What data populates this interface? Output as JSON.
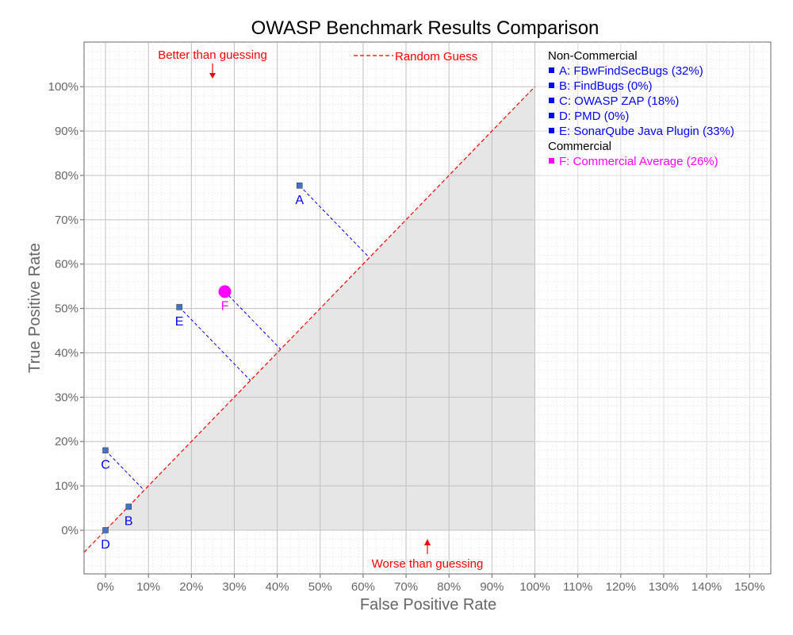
{
  "chart_data": {
    "type": "scatter",
    "title": "OWASP Benchmark Results Comparison",
    "xlabel": "False Positive Rate",
    "ylabel": "True Positive Rate",
    "xlim": [
      -5,
      160
    ],
    "ylim": [
      -10,
      110
    ],
    "x_ticks": [
      "0%",
      "10%",
      "20%",
      "30%",
      "40%",
      "50%",
      "60%",
      "70%",
      "80%",
      "90%",
      "100%",
      "110%",
      "120%",
      "130%",
      "140%",
      "150%"
    ],
    "y_ticks": [
      "0%",
      "10%",
      "20%",
      "30%",
      "40%",
      "50%",
      "60%",
      "70%",
      "80%",
      "90%",
      "100%"
    ],
    "grid": true,
    "legend_position": "top-right",
    "random_guess_label": "Random Guess",
    "annotations": {
      "better": "Better than guessing",
      "worse": "Worse than guessing"
    },
    "legend": {
      "group1": "Non-Commercial",
      "group2": "Commercial",
      "entries": [
        {
          "label": "A: FBwFindSecBugs (32%)",
          "color": "#0000ff",
          "group": 1
        },
        {
          "label": "B: FindBugs (0%)",
          "color": "#0000ff",
          "group": 1
        },
        {
          "label": "C: OWASP ZAP (18%)",
          "color": "#0000ff",
          "group": 1
        },
        {
          "label": "D: PMD (0%)",
          "color": "#0000ff",
          "group": 1
        },
        {
          "label": "E: SonarQube Java Plugin (33%)",
          "color": "#0000ff",
          "group": 1
        },
        {
          "label": "F: Commercial Average (26%)",
          "color": "#ff00ff",
          "group": 2
        }
      ]
    },
    "points": [
      {
        "label": "A",
        "x": 45.2,
        "y": 77.7,
        "color": "#0000ff",
        "marker": "square"
      },
      {
        "label": "B",
        "x": 5.4,
        "y": 5.3,
        "color": "#0000ff",
        "marker": "square"
      },
      {
        "label": "C",
        "x": 0.0,
        "y": 18.0,
        "color": "#0000ff",
        "marker": "square"
      },
      {
        "label": "D",
        "x": 0.0,
        "y": 0.0,
        "color": "#0000ff",
        "marker": "square"
      },
      {
        "label": "E",
        "x": 17.2,
        "y": 50.3,
        "color": "#0000ff",
        "marker": "square"
      },
      {
        "label": "F",
        "x": 27.8,
        "y": 53.8,
        "color": "#ff00ff",
        "marker": "circle"
      }
    ]
  }
}
